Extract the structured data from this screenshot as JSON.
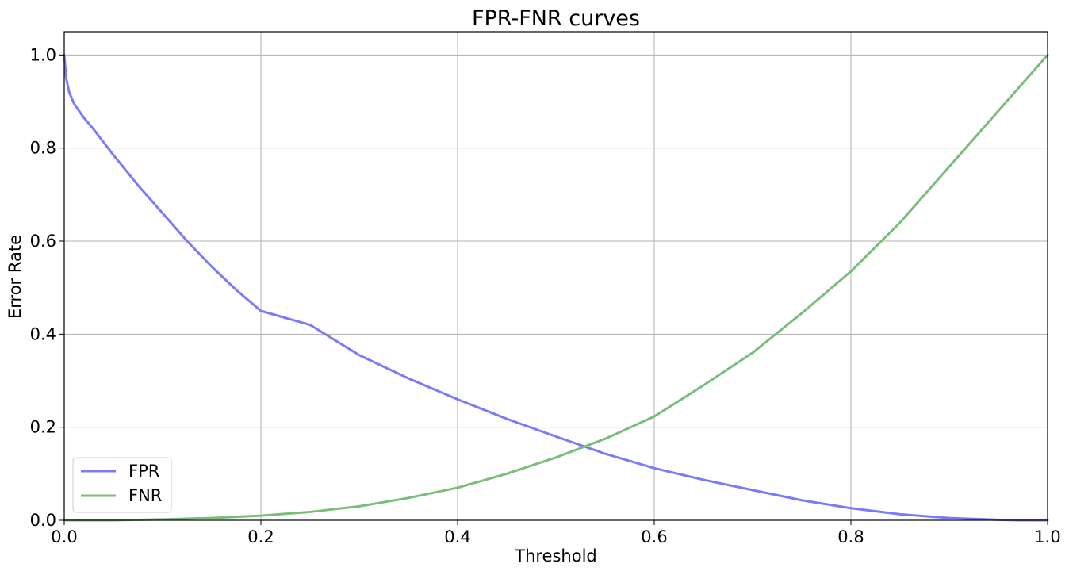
{
  "chart_data": {
    "type": "line",
    "title": "FPR-FNR curves",
    "xlabel": "Threshold",
    "ylabel": "Error Rate",
    "xlim": [
      0.0,
      1.0
    ],
    "ylim": [
      0.0,
      1.05
    ],
    "xticks": [
      0.0,
      0.2,
      0.4,
      0.6,
      0.8,
      1.0
    ],
    "yticks": [
      0.0,
      0.2,
      0.4,
      0.6,
      0.8,
      1.0
    ],
    "xtick_labels": [
      "0.0",
      "0.2",
      "0.4",
      "0.6",
      "0.8",
      "1.0"
    ],
    "ytick_labels": [
      "0.0",
      "0.2",
      "0.4",
      "0.6",
      "0.8",
      "1.0"
    ],
    "grid": true,
    "legend_position": "lower-left",
    "series": [
      {
        "name": "FPR",
        "color": "#7b7bf7",
        "x": [
          0.0,
          0.002,
          0.005,
          0.01,
          0.015,
          0.02,
          0.03,
          0.05,
          0.075,
          0.1,
          0.125,
          0.15,
          0.175,
          0.2,
          0.25,
          0.3,
          0.35,
          0.4,
          0.45,
          0.5,
          0.55,
          0.6,
          0.65,
          0.7,
          0.75,
          0.8,
          0.85,
          0.9,
          0.95,
          0.97,
          1.0
        ],
        "y": [
          1.0,
          0.95,
          0.92,
          0.895,
          0.88,
          0.865,
          0.84,
          0.785,
          0.72,
          0.66,
          0.6,
          0.545,
          0.495,
          0.45,
          0.42,
          0.355,
          0.305,
          0.26,
          0.218,
          0.18,
          0.143,
          0.112,
          0.087,
          0.065,
          0.043,
          0.026,
          0.013,
          0.005,
          0.001,
          0.0,
          0.0
        ]
      },
      {
        "name": "FNR",
        "color": "#7bbd7b",
        "x": [
          0.0,
          0.05,
          0.1,
          0.15,
          0.2,
          0.25,
          0.3,
          0.35,
          0.4,
          0.45,
          0.5,
          0.55,
          0.6,
          0.65,
          0.7,
          0.75,
          0.8,
          0.85,
          0.9,
          0.95,
          1.0
        ],
        "y": [
          0.0,
          0.0,
          0.002,
          0.005,
          0.01,
          0.018,
          0.03,
          0.048,
          0.07,
          0.1,
          0.135,
          0.175,
          0.223,
          0.29,
          0.36,
          0.445,
          0.535,
          0.64,
          0.76,
          0.88,
          1.0
        ]
      }
    ]
  }
}
